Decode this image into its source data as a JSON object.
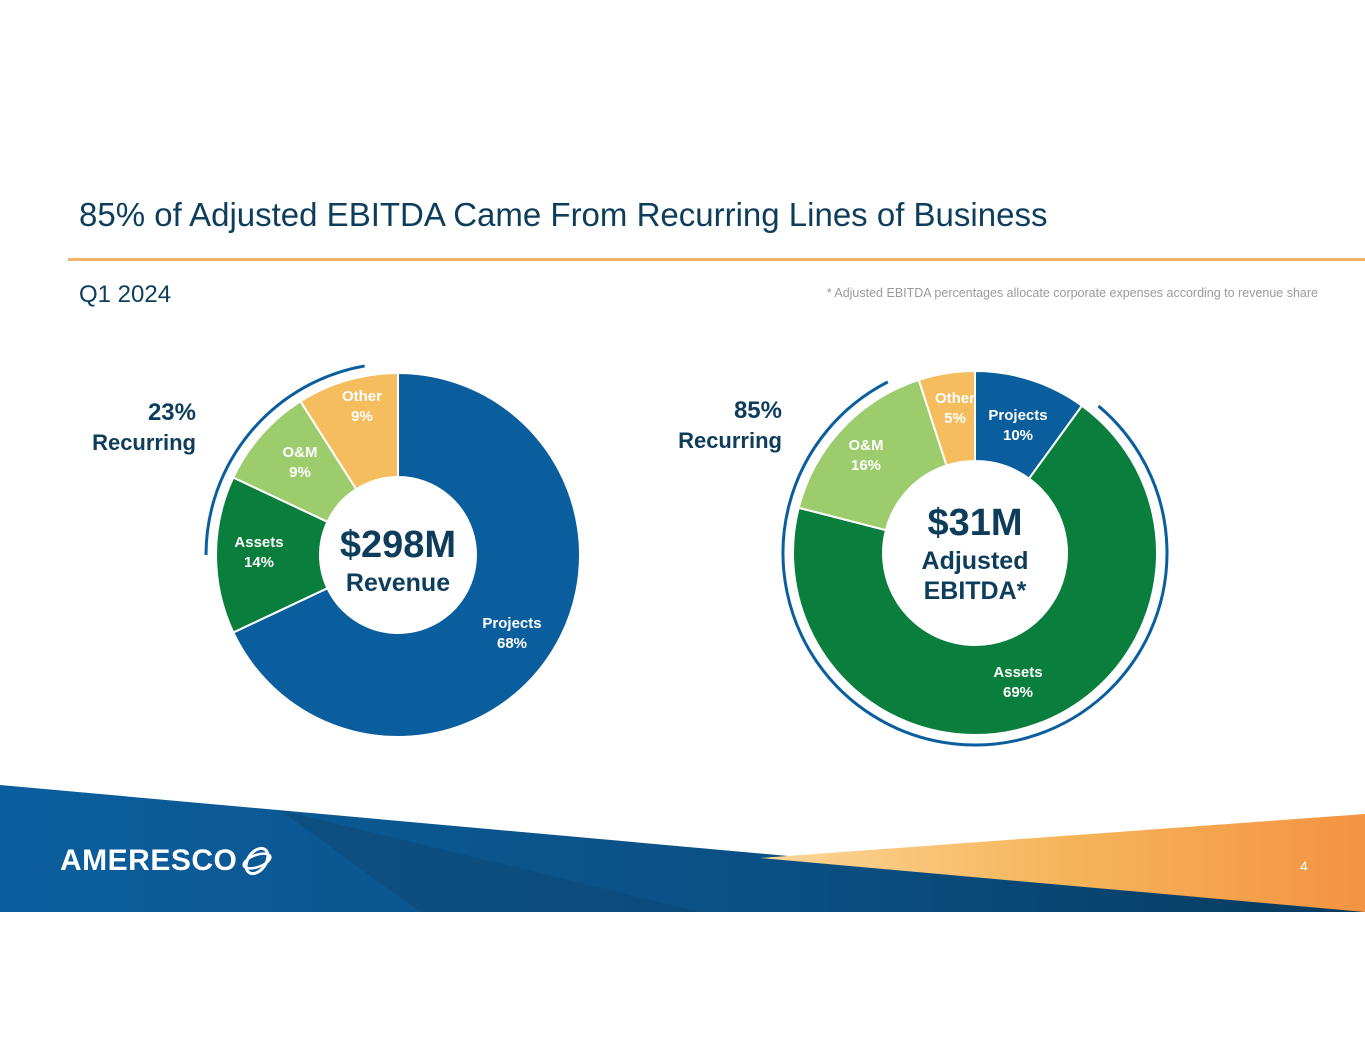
{
  "slide": {
    "title": "85% of Adjusted EBITDA Came From Recurring Lines of Business",
    "subtitle": "Q1 2024",
    "footnote": "* Adjusted EBITDA percentages allocate corporate expenses according to revenue share",
    "page_number": "4",
    "logo_text": "AMERESCO",
    "accent_color": "#f6b26b",
    "text_color": "#0e3d5c"
  },
  "chart_data": [
    {
      "type": "pie",
      "variant": "donut",
      "center_value": "$298M",
      "center_label": "Revenue",
      "recurring_pct": "23%",
      "recurring_label": "Recurring",
      "slices": [
        {
          "name": "Projects",
          "label": "68%",
          "value": 68,
          "color": "#0b5e9e"
        },
        {
          "name": "Assets",
          "label": "14%",
          "value": 14,
          "color": "#0a7e3c"
        },
        {
          "name": "O&M",
          "label": "9%",
          "value": 9,
          "color": "#9ccc6c"
        },
        {
          "name": "Other",
          "label": "9%",
          "value": 9,
          "color": "#f5bd5e"
        }
      ]
    },
    {
      "type": "pie",
      "variant": "donut",
      "center_value": "$31M",
      "center_label": "Adjusted EBITDA*",
      "recurring_pct": "85%",
      "recurring_label": "Recurring",
      "slices": [
        {
          "name": "Projects",
          "label": "10%",
          "value": 10,
          "color": "#0b5e9e"
        },
        {
          "name": "Assets",
          "label": "69%",
          "value": 69,
          "color": "#0a7e3c"
        },
        {
          "name": "O&M",
          "label": "16%",
          "value": 16,
          "color": "#9ccc6c"
        },
        {
          "name": "Other",
          "label": "5%",
          "value": 5,
          "color": "#f5bd5e"
        }
      ]
    }
  ]
}
